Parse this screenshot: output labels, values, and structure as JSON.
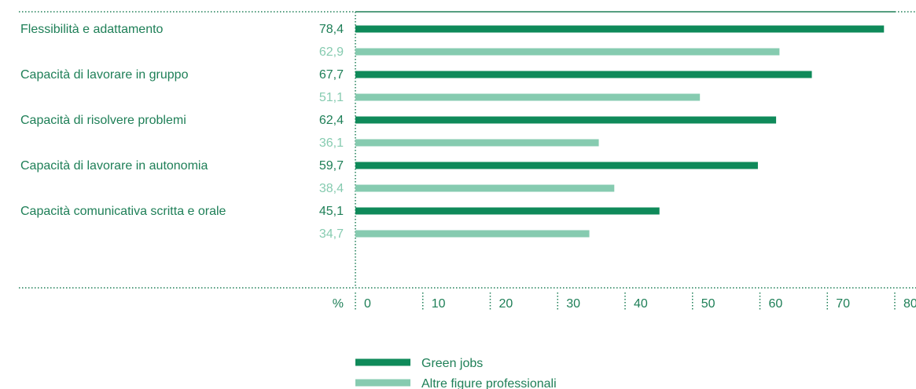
{
  "chart_data": {
    "type": "bar",
    "orientation": "horizontal",
    "xlabel": "%",
    "xlim": [
      0,
      80
    ],
    "xticks": [
      0,
      10,
      20,
      30,
      40,
      50,
      60,
      70,
      80
    ],
    "categories": [
      "Flessibilità e adattamento",
      "Capacità di lavorare in gruppo",
      "Capacità di risolvere problemi",
      "Capacità di lavorare in autonomia",
      "Capacità comunicativa scritta e orale"
    ],
    "series": [
      {
        "name": "Green jobs",
        "color": "#0f8a5a",
        "values": [
          78.4,
          67.7,
          62.4,
          59.7,
          45.1
        ],
        "labels": [
          "78,4",
          "67,7",
          "62,4",
          "59,7",
          "45,1"
        ]
      },
      {
        "name": "Altre figure professionali",
        "color": "#86cbb0",
        "values": [
          62.9,
          51.1,
          36.1,
          38.4,
          34.7
        ],
        "labels": [
          "62,9",
          "51,1",
          "36,1",
          "38,4",
          "34,7"
        ]
      }
    ],
    "grid": "dotted vertical at ticks",
    "legend": "bottom-center"
  },
  "colors": {
    "label_text": "#1e7f57",
    "axis": "#1e7f57"
  }
}
